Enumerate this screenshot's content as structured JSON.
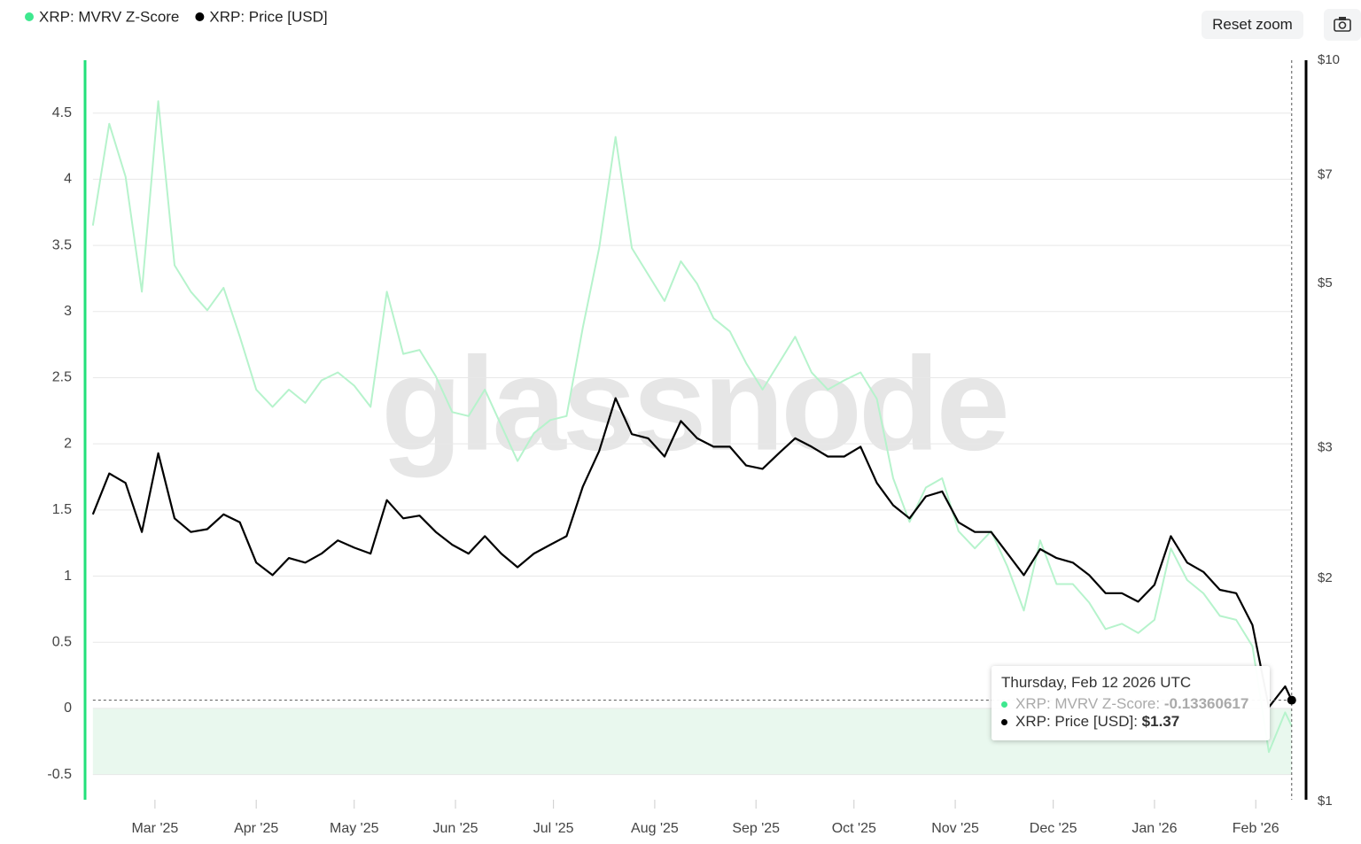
{
  "chart_data": {
    "type": "line",
    "watermark": "glassnode",
    "x": [
      0,
      5,
      10,
      15,
      20,
      25,
      30,
      35,
      40,
      45,
      50,
      55,
      60,
      65,
      70,
      75,
      80,
      85,
      90,
      95,
      100,
      105,
      110,
      115,
      120,
      125,
      130,
      135,
      140,
      145,
      150,
      155,
      160,
      165,
      170,
      175,
      180,
      185,
      190,
      195,
      200,
      205,
      210,
      215,
      220,
      225,
      230,
      235,
      240,
      245,
      250,
      255,
      260,
      265,
      270,
      275,
      280,
      285,
      290,
      295,
      300,
      305,
      310,
      315,
      320,
      325,
      330,
      335,
      340,
      345,
      350,
      355,
      360,
      365,
      367
    ],
    "xlim": [
      -2.4,
      371.4
    ],
    "xticks": [
      {
        "value": 19,
        "label": "Mar '25"
      },
      {
        "value": 50,
        "label": "Apr '25"
      },
      {
        "value": 80,
        "label": "May '25"
      },
      {
        "value": 111,
        "label": "Jun '25"
      },
      {
        "value": 141,
        "label": "Jul '25"
      },
      {
        "value": 172,
        "label": "Aug '25"
      },
      {
        "value": 203,
        "label": "Sep '25"
      },
      {
        "value": 233,
        "label": "Oct '25"
      },
      {
        "value": 264,
        "label": "Nov '25"
      },
      {
        "value": 294,
        "label": "Dec '25"
      },
      {
        "value": 325,
        "label": "Jan '26"
      },
      {
        "value": 356,
        "label": "Feb '26"
      }
    ],
    "ylim": [
      -0.69,
      4.9
    ],
    "yticks": [
      -0.5,
      0,
      0.5,
      1,
      1.5,
      2,
      2.5,
      3,
      3.5,
      4,
      4.5
    ],
    "y2lim": [
      1,
      10
    ],
    "y2log": true,
    "y2ticks": [
      {
        "value": 1,
        "label": "$1"
      },
      {
        "value": 2,
        "label": "$2"
      },
      {
        "value": 3,
        "label": "$3"
      },
      {
        "value": 5,
        "label": "$5"
      },
      {
        "value": 7,
        "label": "$7"
      },
      {
        "value": 10,
        "label": "$10"
      }
    ],
    "grid": true,
    "series": [
      {
        "name": "XRP: MVRV Z-Score",
        "color": "#b6f3cc",
        "legend_color": "#3ee88f",
        "axis_color": "#22e07a",
        "values": [
          3.65,
          4.42,
          4.02,
          3.15,
          4.59,
          3.35,
          3.15,
          3.01,
          3.18,
          2.81,
          2.41,
          2.28,
          2.41,
          2.31,
          2.48,
          2.54,
          2.44,
          2.28,
          3.15,
          2.68,
          2.71,
          2.51,
          2.24,
          2.21,
          2.41,
          2.14,
          1.87,
          2.08,
          2.18,
          2.21,
          2.88,
          3.48,
          4.32,
          3.48,
          3.28,
          3.08,
          3.38,
          3.21,
          2.95,
          2.85,
          2.61,
          2.41,
          2.61,
          2.81,
          2.54,
          2.41,
          2.48,
          2.54,
          2.34,
          1.74,
          1.41,
          1.67,
          1.74,
          1.34,
          1.21,
          1.34,
          1.07,
          0.74,
          1.27,
          0.94,
          0.94,
          0.8,
          0.6,
          0.64,
          0.57,
          0.67,
          1.21,
          0.97,
          0.87,
          0.7,
          0.67,
          0.47,
          -0.33,
          -0.03,
          -0.13360617
        ]
      },
      {
        "name": "XRP: Price [USD]",
        "color": "#000000",
        "legend_color": "#000000",
        "axis_color": "#000000",
        "axis": "y2",
        "values": [
          2.44,
          2.77,
          2.69,
          2.31,
          2.95,
          2.41,
          2.31,
          2.33,
          2.44,
          2.38,
          2.1,
          2.02,
          2.13,
          2.1,
          2.16,
          2.25,
          2.2,
          2.16,
          2.55,
          2.41,
          2.43,
          2.31,
          2.22,
          2.16,
          2.28,
          2.16,
          2.07,
          2.16,
          2.22,
          2.28,
          2.66,
          2.97,
          3.5,
          3.13,
          3.09,
          2.92,
          3.26,
          3.09,
          3.01,
          3.01,
          2.84,
          2.81,
          2.95,
          3.09,
          3.01,
          2.92,
          2.92,
          3.01,
          2.69,
          2.51,
          2.41,
          2.58,
          2.62,
          2.38,
          2.31,
          2.31,
          2.16,
          2.02,
          2.19,
          2.13,
          2.1,
          2.02,
          1.91,
          1.91,
          1.86,
          1.96,
          2.28,
          2.1,
          2.04,
          1.93,
          1.91,
          1.73,
          1.34,
          1.43,
          1.37
        ]
      }
    ],
    "tooltip": {
      "date": "Thursday, Feb 12 2026 UTC",
      "rows": [
        {
          "label": "XRP: MVRV Z-Score:",
          "value": "-0.13360617"
        },
        {
          "label": "XRP: Price [USD]:",
          "value": "$1.37"
        }
      ]
    },
    "reset_button": "Reset zoom"
  }
}
